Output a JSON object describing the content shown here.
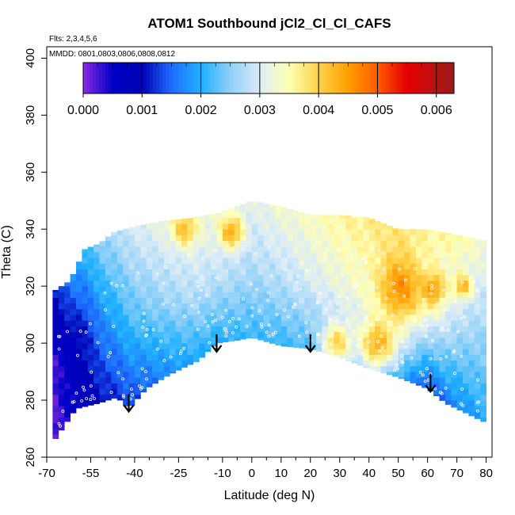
{
  "chart_data": {
    "type": "heatmap",
    "title": "ATOM1 Southbound jCl2_Cl_Cl_CAFS",
    "flights_note": "Flts: 2,3,4,5,6",
    "dates_note": "MMDD: 0801,0803,0806,0808,0812",
    "xlabel": "Latitude (deg N)",
    "ylabel": "Theta (C)",
    "xlim": [
      -70,
      82
    ],
    "ylim": [
      260,
      404
    ],
    "x_tick_labels": [
      "-70",
      "-55",
      "-40",
      "-25",
      "-10",
      "0",
      "10",
      "20",
      "30",
      "40",
      "50",
      "60",
      "70",
      "80"
    ],
    "x_tick_values": [
      -70,
      -55,
      -40,
      -25,
      -10,
      0,
      10,
      20,
      30,
      40,
      50,
      60,
      70,
      80
    ],
    "x_minor_ticks": [
      -60,
      -50,
      -45,
      -35,
      -30,
      -20,
      -15,
      -5,
      5,
      15,
      25,
      35,
      45,
      55,
      65,
      75
    ],
    "y_tick_labels": [
      "260",
      "280",
      "300",
      "320",
      "340",
      "360",
      "380",
      "400"
    ],
    "y_tick_values": [
      260,
      280,
      300,
      320,
      340,
      360,
      380,
      400
    ],
    "colorbar": {
      "min": 0,
      "max": 0.0063,
      "tick_labels": [
        "0.000",
        "0.001",
        "0.002",
        "0.003",
        "0.004",
        "0.005",
        "0.006"
      ],
      "tick_values": [
        0,
        0.001,
        0.002,
        0.003,
        0.004,
        0.005,
        0.006
      ],
      "color_stops": [
        {
          "v": 0.0,
          "c": "#8a2be2"
        },
        {
          "v": 0.0005,
          "c": "#0000c8"
        },
        {
          "v": 0.001,
          "c": "#0000b4"
        },
        {
          "v": 0.0015,
          "c": "#1e6cff"
        },
        {
          "v": 0.002,
          "c": "#1fb0ff"
        },
        {
          "v": 0.0025,
          "c": "#8fd0f8"
        },
        {
          "v": 0.003,
          "c": "#dcecf8"
        },
        {
          "v": 0.0035,
          "c": "#ffffb4"
        },
        {
          "v": 0.004,
          "c": "#ffd24a"
        },
        {
          "v": 0.0045,
          "c": "#ffa000"
        },
        {
          "v": 0.005,
          "c": "#ff5a00"
        },
        {
          "v": 0.0055,
          "c": "#e60000"
        },
        {
          "v": 0.0063,
          "c": "#9b1b1b"
        }
      ]
    },
    "upper_boundary": [
      [
        -68,
        318
      ],
      [
        -62,
        322
      ],
      [
        -57,
        333
      ],
      [
        -52,
        335
      ],
      [
        -47,
        339
      ],
      [
        -40,
        341
      ],
      [
        -30,
        343
      ],
      [
        -20,
        344
      ],
      [
        -10,
        346
      ],
      [
        0,
        350
      ],
      [
        10,
        348
      ],
      [
        20,
        345
      ],
      [
        30,
        345
      ],
      [
        40,
        344
      ],
      [
        50,
        340
      ],
      [
        60,
        340
      ],
      [
        70,
        338
      ],
      [
        80,
        336
      ]
    ],
    "lower_boundary": [
      [
        -68,
        265
      ],
      [
        -60,
        277
      ],
      [
        -52,
        279
      ],
      [
        -46,
        281
      ],
      [
        -42,
        277
      ],
      [
        -36,
        284
      ],
      [
        -28,
        289
      ],
      [
        -18,
        294
      ],
      [
        -12,
        300
      ],
      [
        -5,
        301
      ],
      [
        0,
        302
      ],
      [
        10,
        299
      ],
      [
        20,
        298
      ],
      [
        30,
        295
      ],
      [
        40,
        291
      ],
      [
        50,
        288
      ],
      [
        55,
        286
      ],
      [
        60,
        284
      ],
      [
        66,
        279
      ],
      [
        72,
        276
      ],
      [
        78,
        273
      ],
      [
        80,
        272
      ]
    ],
    "column_means": [
      {
        "lat": -68,
        "top": 0.001,
        "mid": 0.0002,
        "bot": 0.0001
      },
      {
        "lat": -60,
        "top": 0.0019,
        "mid": 0.0009,
        "bot": 0.0006
      },
      {
        "lat": -50,
        "top": 0.0026,
        "mid": 0.0018,
        "bot": 0.0011
      },
      {
        "lat": -40,
        "top": 0.003,
        "mid": 0.0023,
        "bot": 0.0013
      },
      {
        "lat": -30,
        "top": 0.0032,
        "mid": 0.0026,
        "bot": 0.0017
      },
      {
        "lat": -20,
        "top": 0.0033,
        "mid": 0.0028,
        "bot": 0.0019
      },
      {
        "lat": -10,
        "top": 0.0032,
        "mid": 0.0028,
        "bot": 0.002
      },
      {
        "lat": 0,
        "top": 0.0031,
        "mid": 0.0027,
        "bot": 0.0021
      },
      {
        "lat": 10,
        "top": 0.0033,
        "mid": 0.0028,
        "bot": 0.0021
      },
      {
        "lat": 20,
        "top": 0.0034,
        "mid": 0.003,
        "bot": 0.0022
      },
      {
        "lat": 30,
        "top": 0.0036,
        "mid": 0.0032,
        "bot": 0.0024
      },
      {
        "lat": 40,
        "top": 0.0037,
        "mid": 0.0034,
        "bot": 0.0025
      },
      {
        "lat": 50,
        "top": 0.0038,
        "mid": 0.004,
        "bot": 0.002
      },
      {
        "lat": 60,
        "top": 0.0036,
        "mid": 0.0034,
        "bot": 0.0013
      },
      {
        "lat": 70,
        "top": 0.0036,
        "mid": 0.0028,
        "bot": 0.0017
      },
      {
        "lat": 80,
        "top": 0.0033,
        "mid": 0.0026,
        "bot": 0.002
      }
    ],
    "hotspots": [
      {
        "lat": -23,
        "theta": 340,
        "value": 0.0042,
        "spread": 4
      },
      {
        "lat": -7,
        "theta": 339,
        "value": 0.0044,
        "spread": 4
      },
      {
        "lat": 51,
        "theta": 320,
        "value": 0.0046,
        "spread": 6
      },
      {
        "lat": 43,
        "theta": 300,
        "value": 0.0043,
        "spread": 6
      },
      {
        "lat": 29,
        "theta": 300,
        "value": 0.004,
        "spread": 5
      },
      {
        "lat": 62,
        "theta": 319,
        "value": 0.0045,
        "spread": 4
      },
      {
        "lat": 72,
        "theta": 320,
        "value": 0.0043,
        "spread": 3
      }
    ],
    "arrows": [
      {
        "lat": -42,
        "theta": 276
      },
      {
        "lat": -12,
        "theta": 297
      },
      {
        "lat": 20,
        "theta": 297
      },
      {
        "lat": 61,
        "theta": 283
      }
    ]
  }
}
